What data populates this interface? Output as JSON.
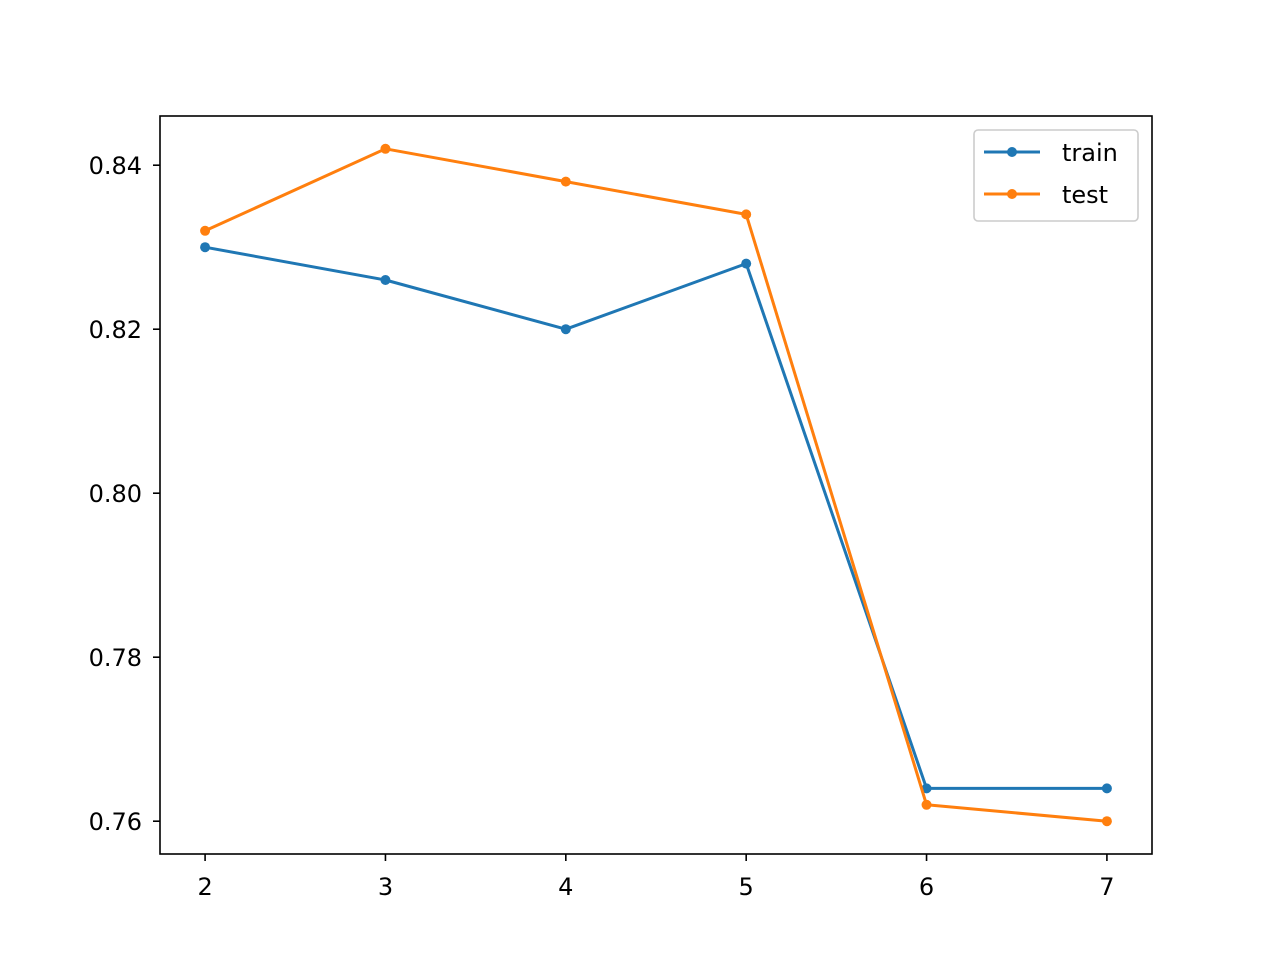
{
  "chart_data": {
    "type": "line",
    "title": "",
    "xlabel": "",
    "ylabel": "",
    "x": [
      2,
      3,
      4,
      5,
      6,
      7
    ],
    "xlim": [
      1.75,
      7.25
    ],
    "ylim": [
      0.756,
      0.846
    ],
    "x_ticks": [
      2,
      3,
      4,
      5,
      6,
      7
    ],
    "x_tick_labels": [
      "2",
      "3",
      "4",
      "5",
      "6",
      "7"
    ],
    "y_ticks": [
      0.76,
      0.78,
      0.8,
      0.82,
      0.84
    ],
    "y_tick_labels": [
      "0.76",
      "0.78",
      "0.80",
      "0.82",
      "0.84"
    ],
    "grid": false,
    "legend_position": "upper right",
    "series": [
      {
        "name": "train",
        "color": "#1f77b4",
        "marker": "circle",
        "values": [
          0.83,
          0.826,
          0.82,
          0.828,
          0.764,
          0.764
        ]
      },
      {
        "name": "test",
        "color": "#ff7f0e",
        "marker": "circle",
        "values": [
          0.832,
          0.842,
          0.838,
          0.834,
          0.762,
          0.76
        ]
      }
    ]
  }
}
